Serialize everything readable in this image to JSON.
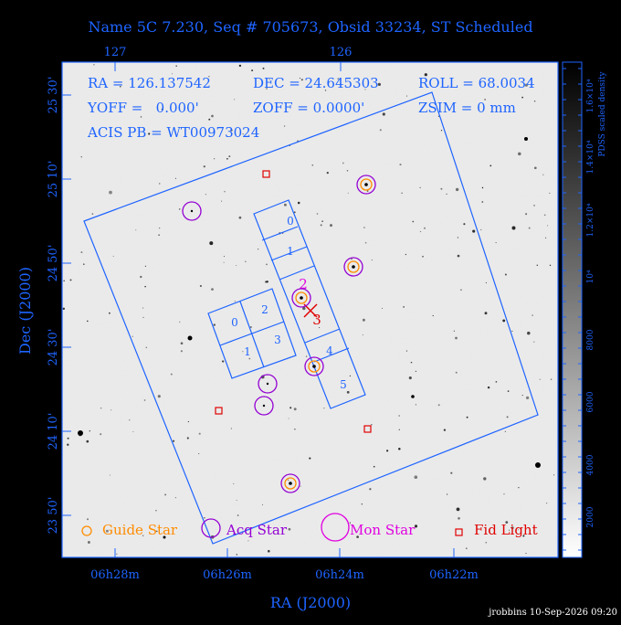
{
  "title": "Name 5C 7.230, Seq # 705673, Obsid 33234, ST Scheduled",
  "header_info": {
    "ra": "RA = 126.137542",
    "dec": "DEC = 24.645303",
    "roll": "ROLL = 68.0034",
    "yoff": "YOFF =   0.000'",
    "zoff": "ZOFF = 0.0000'",
    "zsim": "ZSIM = 0 mm",
    "acis": "ACIS PB = WT00973024"
  },
  "top_axis_ticks": [
    "127",
    "126"
  ],
  "left_axis_ticks": [
    "25 30'",
    "25 10'",
    "24 50'",
    "24 30'",
    "24 10'",
    "23 50'"
  ],
  "bottom_axis_ticks": [
    "06h28m",
    "06h26m",
    "06h24m",
    "06h22m"
  ],
  "x_axis_label": "RA (J2000)",
  "y_axis_label": "Dec (J2000)",
  "colorbar": {
    "label": "PDSS scaled density",
    "ticks": [
      "2000",
      "4000",
      "6000",
      "8000",
      "10⁴",
      "1.2×10⁴",
      "1.4×10⁴",
      "1.6×10⁴"
    ]
  },
  "chip_labels": {
    "s": [
      "0",
      "1",
      "2",
      "3",
      "4",
      "5"
    ],
    "i": [
      "0",
      "2",
      "1",
      "3"
    ]
  },
  "marker_labels": [
    "2",
    "3"
  ],
  "legend": {
    "guide": "Guide Star",
    "acq": "Acq Star",
    "mon": "Mon Star",
    "fid": "Fid Light"
  },
  "footer": "jrobbins 10-Sep-2026 09:20",
  "colors": {
    "axis": "#1e64ff",
    "guide": "#ff8c00",
    "acq": "#9400d3",
    "mon": "#e000e0",
    "fid": "#e00000",
    "background": "#000000"
  }
}
